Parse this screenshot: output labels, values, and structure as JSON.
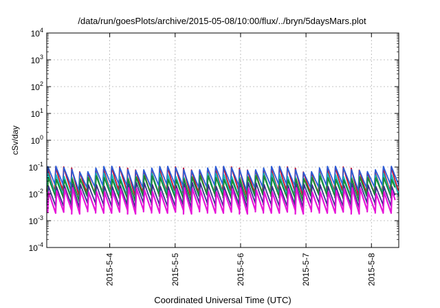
{
  "chart_data": {
    "type": "line",
    "title": "/data/run/goesPlots/archive/2015-05-08/10:00/flux/../bryn/5daysMars.plot",
    "xlabel": "Coordinated Universal Time (UTC)",
    "ylabel": "cSv/day",
    "yscale": "log",
    "ylim": [
      0.0001,
      10000
    ],
    "xlim_days": [
      "2015-05-03 00:54",
      "2015-05-08 10:00"
    ],
    "grid": true,
    "legend": "none",
    "y_ticks": [
      {
        "base": "10",
        "exp": "-4"
      },
      {
        "base": "10",
        "exp": "-3"
      },
      {
        "base": "10",
        "exp": "-2"
      },
      {
        "base": "10",
        "exp": "-1"
      },
      {
        "base": "10",
        "exp": "0"
      },
      {
        "base": "10",
        "exp": "1"
      },
      {
        "base": "10",
        "exp": "2"
      },
      {
        "base": "10",
        "exp": "3"
      },
      {
        "base": "10",
        "exp": "4"
      }
    ],
    "x_ticks": [
      "2015-5-4",
      "2015-5-5",
      "2015-5-6",
      "2015-5-7",
      "2015-5-8"
    ],
    "pattern": {
      "description": "sawtooth dose-rate traces, one period ~2.9 h",
      "period_hours": 2.93,
      "series_peak_trough": [
        {
          "color": "#c8102e",
          "peak": 0.085,
          "trough": 0.012
        },
        {
          "color": "#2a5bd7",
          "peak": 0.09,
          "trough": 0.02
        },
        {
          "color": "#19b4b4",
          "peak": 0.05,
          "trough": 0.009
        },
        {
          "color": "#1a8a2e",
          "peak": 0.04,
          "trough": 0.008
        },
        {
          "color": "#3d2d8c",
          "peak": 0.022,
          "trough": 0.004
        },
        {
          "color": "#e616d8",
          "peak": 0.014,
          "trough": 0.0022
        }
      ]
    }
  }
}
